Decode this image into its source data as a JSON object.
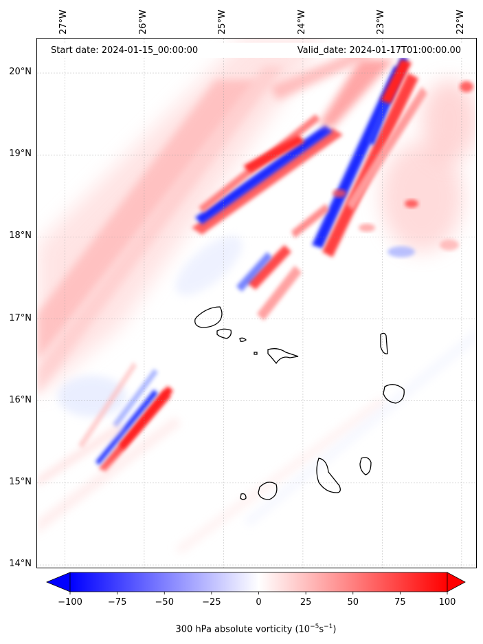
{
  "map": {
    "start_label": "Start date: 2024-01-15_00:00:00",
    "valid_label": "Valid_date: 2024-01-17T01:00:00.00",
    "lat_labels": [
      "20°N",
      "19°N",
      "18°N",
      "17°N",
      "16°N",
      "15°N",
      "14°N"
    ],
    "lon_labels": [
      "27°W",
      "26°W",
      "25°W",
      "24°W",
      "23°W",
      "22°W"
    ],
    "lat_values": [
      20,
      19,
      18,
      17,
      16,
      15,
      14
    ],
    "lon_values": [
      -27,
      -26,
      -25,
      -24,
      -23,
      -22
    ],
    "extent": {
      "lon_min": -27.35,
      "lon_max": -21.8,
      "lat_min": 13.95,
      "lat_max": 20.42
    },
    "gridlines": true,
    "islands": [
      "Santo Antão",
      "São Vicente",
      "Santa Luzia",
      "São Nicolau",
      "Sal",
      "Boa Vista",
      "Maio",
      "Santiago",
      "Fogo",
      "Brava"
    ]
  },
  "colorbar": {
    "ticks": [
      "−100",
      "−75",
      "−50",
      "−25",
      "0",
      "25",
      "50",
      "75",
      "100"
    ],
    "tick_values": [
      -100,
      -75,
      -50,
      -25,
      0,
      25,
      50,
      75,
      100
    ],
    "range": [
      -100,
      100
    ],
    "extend": "both",
    "label_main": "300 hPa absolute vorticity (10",
    "label_exp1": "−5",
    "label_mid": "s",
    "label_exp2": "−1",
    "label_end": ")",
    "colors": {
      "min": "#0000ff",
      "mid": "#ffffff",
      "max": "#ff0000"
    }
  }
}
